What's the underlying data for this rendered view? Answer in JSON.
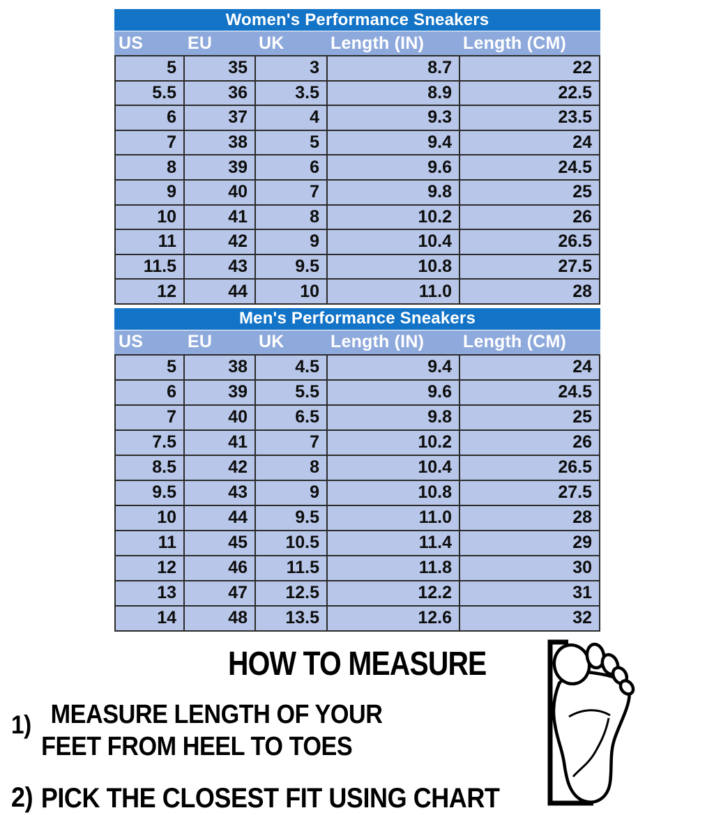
{
  "colors": {
    "title_bar_blue": "#1273C7",
    "header_row_blue": "#8EA9DB",
    "data_row_blue": "#B8C7E9",
    "grid_line": "#2B2B2B",
    "header_text": "#FFFFFF",
    "data_text": "#0D0D0D",
    "body_text": "#000000"
  },
  "tables": [
    {
      "title": "Women's Performance Sneakers",
      "columns": [
        "US",
        "EU",
        "UK",
        "Length (IN)",
        "Length (CM)"
      ],
      "rows": [
        [
          "5",
          "35",
          "3",
          "8.7",
          "22"
        ],
        [
          "5.5",
          "36",
          "3.5",
          "8.9",
          "22.5"
        ],
        [
          "6",
          "37",
          "4",
          "9.3",
          "23.5"
        ],
        [
          "7",
          "38",
          "5",
          "9.4",
          "24"
        ],
        [
          "8",
          "39",
          "6",
          "9.6",
          "24.5"
        ],
        [
          "9",
          "40",
          "7",
          "9.8",
          "25"
        ],
        [
          "10",
          "41",
          "8",
          "10.2",
          "26"
        ],
        [
          "11",
          "42",
          "9",
          "10.4",
          "26.5"
        ],
        [
          "11.5",
          "43",
          "9.5",
          "10.8",
          "27.5"
        ],
        [
          "12",
          "44",
          "10",
          "11.0",
          "28"
        ]
      ]
    },
    {
      "title": "Men's Performance Sneakers",
      "columns": [
        "US",
        "EU",
        "UK",
        "Length (IN)",
        "Length (CM)"
      ],
      "rows": [
        [
          "5",
          "38",
          "4.5",
          "9.4",
          "24"
        ],
        [
          "6",
          "39",
          "5.5",
          "9.6",
          "24.5"
        ],
        [
          "7",
          "40",
          "6.5",
          "9.8",
          "25"
        ],
        [
          "7.5",
          "41",
          "7",
          "10.2",
          "26"
        ],
        [
          "8.5",
          "42",
          "8",
          "10.4",
          "26.5"
        ],
        [
          "9.5",
          "43",
          "9",
          "10.8",
          "27.5"
        ],
        [
          "10",
          "44",
          "9.5",
          "11.0",
          "28"
        ],
        [
          "11",
          "45",
          "10.5",
          "11.4",
          "29"
        ],
        [
          "12",
          "46",
          "11.5",
          "11.8",
          "30"
        ],
        [
          "13",
          "47",
          "12.5",
          "12.2",
          "31"
        ],
        [
          "14",
          "48",
          "13.5",
          "12.6",
          "32"
        ]
      ]
    }
  ],
  "how_to_measure": {
    "title": "HOW TO MEASURE",
    "steps": [
      {
        "num": "1)",
        "lines": [
          "MEASURE LENGTH OF YOUR",
          "FEET FROM HEEL TO TOES"
        ]
      },
      {
        "num": "2)",
        "lines": [
          "PICK THE CLOSEST FIT USING CHART"
        ]
      }
    ],
    "illustration": "foot-sole-with-measuring-bracket"
  }
}
